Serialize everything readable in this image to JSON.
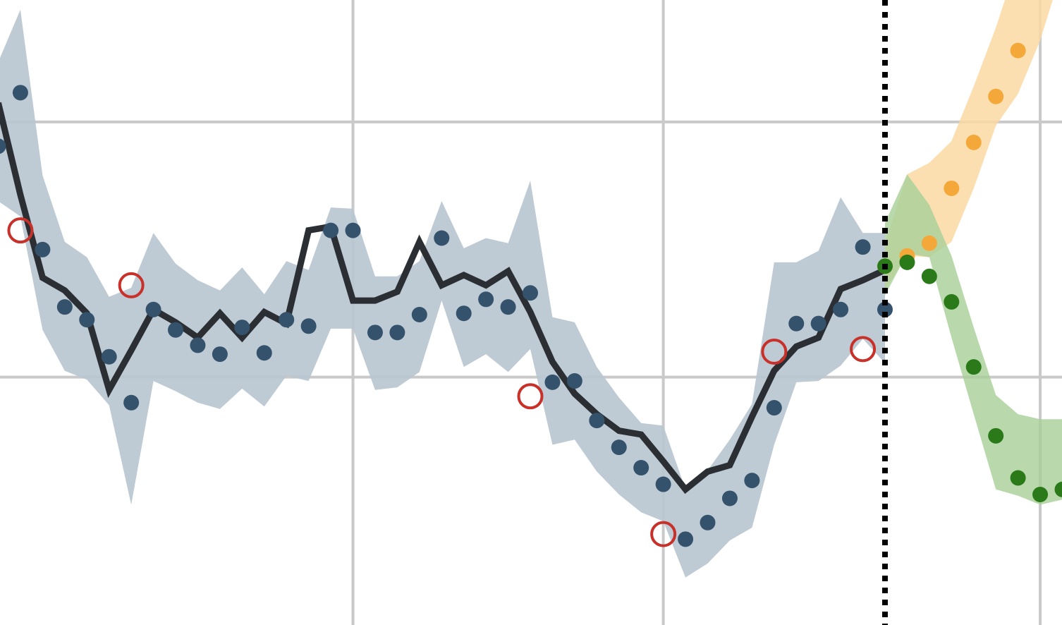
{
  "chart_data": {
    "type": "line",
    "title": "",
    "xlabel": "",
    "ylabel": "",
    "grid": true,
    "xlim": [
      0,
      48
    ],
    "ylim": [
      -2.95,
      1.96
    ],
    "x_gridlines": [
      16,
      30,
      47
    ],
    "y_gridlines": [
      1.0,
      -1.0
    ],
    "forecast_start": 40,
    "colors": {
      "observed_points": "#34526b",
      "observed_band": "#b9c6d0",
      "fit_line": "#2b2f33",
      "flagged_ring": "#c8302a",
      "upper_scenario": "#f5a83a",
      "upper_band": "#fad9a3",
      "lower_scenario": "#2a7a1a",
      "lower_band": "#a8cf98",
      "forecast_marker": "#000000",
      "grid": "#c9c9c9"
    },
    "observed": {
      "x": [
        0,
        1,
        2,
        3,
        4,
        5,
        6,
        7,
        8,
        9,
        10,
        11,
        12,
        13,
        14,
        15,
        16,
        17,
        18,
        19,
        20,
        21,
        22,
        23,
        24,
        25,
        26,
        27,
        28,
        29,
        30,
        31,
        32,
        33,
        34,
        35,
        36,
        37,
        38,
        39,
        40
      ],
      "y": [
        0.81,
        1.23,
        0.0,
        -0.45,
        -0.55,
        -0.84,
        -1.2,
        -0.47,
        -0.63,
        -0.75,
        -0.82,
        -0.61,
        -0.81,
        -0.55,
        -0.6,
        0.15,
        0.15,
        -0.65,
        -0.65,
        -0.51,
        0.09,
        -0.5,
        -0.39,
        -0.45,
        -0.34,
        -1.04,
        -1.03,
        -1.34,
        -1.55,
        -1.71,
        -1.84,
        -2.27,
        -2.14,
        -1.95,
        -1.81,
        -1.24,
        -0.58,
        -0.58,
        -0.47,
        0.02,
        -0.47
      ]
    },
    "fit": {
      "x": [
        0,
        1,
        2,
        3,
        4,
        5,
        6,
        7,
        8,
        9,
        10,
        11,
        12,
        13,
        14,
        15,
        16,
        17,
        18,
        19,
        20,
        21,
        22,
        23,
        24,
        25,
        26,
        27,
        28,
        29,
        30,
        31,
        32,
        33,
        34,
        35,
        36,
        37,
        38,
        39,
        40
      ],
      "y": [
        1.15,
        0.43,
        -0.22,
        -0.32,
        -0.5,
        -1.1,
        -0.79,
        -0.47,
        -0.57,
        -0.69,
        -0.5,
        -0.69,
        -0.49,
        -0.58,
        0.15,
        0.18,
        -0.4,
        -0.4,
        -0.33,
        0.06,
        -0.28,
        -0.2,
        -0.28,
        -0.17,
        -0.49,
        -0.88,
        -1.13,
        -1.29,
        -1.42,
        -1.45,
        -1.66,
        -1.88,
        -1.74,
        -1.69,
        -1.31,
        -0.95,
        -0.76,
        -0.69,
        -0.31,
        -0.24,
        -0.16
      ]
    },
    "observed_band": {
      "x": [
        0,
        1,
        2,
        3,
        4,
        5,
        6,
        7,
        8,
        9,
        10,
        11,
        12,
        13,
        14,
        15,
        16,
        17,
        18,
        19,
        20,
        21,
        22,
        23,
        24,
        25,
        26,
        27,
        28,
        29,
        30,
        31,
        32,
        33,
        34,
        35,
        36,
        37,
        38,
        39,
        40
      ],
      "upper": [
        1.47,
        1.88,
        0.58,
        0.06,
        -0.06,
        -0.37,
        -0.3,
        0.13,
        -0.11,
        -0.24,
        -0.32,
        -0.14,
        -0.35,
        -0.09,
        -0.16,
        0.33,
        0.32,
        -0.21,
        -0.21,
        -0.09,
        0.38,
        0.01,
        0.09,
        0.05,
        0.54,
        -0.53,
        -0.57,
        -0.92,
        -1.16,
        -1.36,
        -1.38,
        -1.88,
        -1.73,
        -1.49,
        -1.21,
        -0.1,
        -0.1,
        -0.01,
        0.41,
        0.13,
        0.13
      ],
      "lower": [
        0.38,
        0.26,
        -0.63,
        -0.95,
        -1.02,
        -1.22,
        -2.0,
        -1.03,
        -1.11,
        -1.2,
        -1.25,
        -1.09,
        -1.23,
        -0.99,
        -1.03,
        -0.62,
        -0.62,
        -1.1,
        -1.08,
        -0.96,
        -0.4,
        -0.92,
        -0.82,
        -0.96,
        -0.78,
        -1.53,
        -1.49,
        -1.74,
        -1.92,
        -2.06,
        -2.13,
        -2.57,
        -2.46,
        -2.28,
        -2.18,
        -1.53,
        -1.04,
        -1.03,
        -0.91,
        -0.7,
        -0.89
      ]
    },
    "flagged": {
      "x": [
        1,
        6,
        24,
        30,
        35,
        39
      ],
      "y": [
        0.15,
        -0.28,
        -1.15,
        -2.23,
        -0.8,
        -0.78
      ]
    },
    "upper_scenario": {
      "x": [
        40,
        41,
        42,
        43,
        44,
        45,
        46,
        47,
        48
      ],
      "y": [
        -0.13,
        -0.05,
        0.05,
        0.48,
        0.84,
        1.2,
        1.56,
        2.05,
        2.55
      ],
      "upper": [
        0.05,
        0.59,
        0.68,
        0.85,
        1.28,
        1.74,
        2.27,
        2.79,
        3.1
      ],
      "lower": [
        -0.31,
        -0.05,
        -0.06,
        0.06,
        0.48,
        0.97,
        1.22,
        1.64,
        2.2
      ]
    },
    "lower_scenario": {
      "x": [
        40,
        41,
        42,
        43,
        44,
        45,
        46,
        47,
        48
      ],
      "y": [
        -0.13,
        -0.1,
        -0.21,
        -0.41,
        -0.92,
        -1.46,
        -1.79,
        -1.92,
        -1.88
      ],
      "upper": [
        0.21,
        0.59,
        0.35,
        -0.05,
        -0.61,
        -1.14,
        -1.29,
        -1.33,
        -1.33
      ],
      "lower": [
        -0.36,
        -0.03,
        -0.06,
        -0.69,
        -1.29,
        -1.88,
        -1.93,
        -2.0,
        -1.96
      ]
    }
  }
}
